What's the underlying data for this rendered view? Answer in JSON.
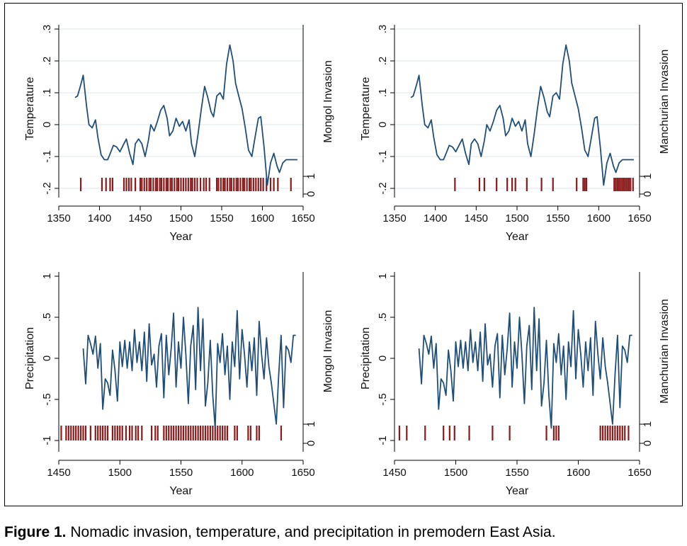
{
  "caption": {
    "label": "Figure 1.",
    "text": "Nomadic invasion, temperature, and precipitation in premodern East Asia."
  },
  "colors": {
    "series_line": "#1f4e79",
    "invasion_bars": "#8b1a1a",
    "grid": "#d8e6ee",
    "axis": "#000000"
  },
  "chart_data": [
    {
      "type": "line",
      "panel": "top-left",
      "xlabel": "Year",
      "ylabel": "Temperature",
      "y2label": "Mongol Invasion",
      "xlim": [
        1350,
        1650
      ],
      "ylim": [
        -0.2,
        0.3
      ],
      "xticks": [
        1350,
        1400,
        1450,
        1500,
        1550,
        1600,
        1650
      ],
      "yticks": [
        -0.2,
        -0.1,
        0,
        0.1,
        0.2,
        0.3
      ],
      "ytick_labels": [
        "-.2",
        "-.1",
        "0",
        ".1",
        ".2",
        ".3"
      ],
      "y2ticks": [
        "0",
        "1"
      ],
      "grid": true,
      "series": [
        {
          "x": [
            1370,
            1373,
            1377,
            1380,
            1384,
            1387,
            1391,
            1395,
            1398,
            1402,
            1406,
            1410,
            1414,
            1417,
            1421,
            1425,
            1429,
            1433,
            1437,
            1441,
            1444,
            1448,
            1452,
            1456,
            1460,
            1463,
            1467,
            1471,
            1475,
            1479,
            1483,
            1486,
            1490,
            1494,
            1498,
            1502,
            1506,
            1510,
            1513,
            1517,
            1521,
            1525,
            1529,
            1533,
            1537,
            1540,
            1544,
            1548,
            1552,
            1556,
            1560,
            1564,
            1567,
            1571,
            1575,
            1579,
            1583,
            1587,
            1591,
            1595,
            1598,
            1602,
            1606,
            1610,
            1614,
            1618,
            1621,
            1625,
            1629,
            1633,
            1637,
            1640,
            1643
          ],
          "y": [
            0.085,
            0.09,
            0.125,
            0.155,
            0.06,
            0.0,
            -0.01,
            0.015,
            -0.04,
            -0.095,
            -0.11,
            -0.11,
            -0.085,
            -0.065,
            -0.07,
            -0.085,
            -0.065,
            -0.045,
            -0.09,
            -0.125,
            -0.06,
            -0.045,
            -0.06,
            -0.1,
            -0.05,
            0.0,
            -0.02,
            0.01,
            0.045,
            0.06,
            0.02,
            -0.035,
            -0.02,
            0.02,
            -0.005,
            0.01,
            -0.02,
            0.015,
            -0.06,
            -0.1,
            -0.03,
            0.05,
            0.12,
            0.085,
            0.04,
            0.025,
            0.09,
            0.1,
            0.08,
            0.19,
            0.25,
            0.2,
            0.13,
            0.09,
            0.05,
            -0.01,
            -0.08,
            -0.1,
            -0.04,
            0.02,
            0.025,
            -0.07,
            -0.19,
            -0.12,
            -0.09,
            -0.13,
            -0.15,
            -0.12,
            -0.11,
            -0.11,
            -0.11,
            -0.11,
            -0.11
          ]
        }
      ],
      "invasion_years": [
        1377,
        1403,
        1408,
        1413,
        1416,
        1430,
        1433,
        1436,
        1439,
        1444,
        1450,
        1452,
        1455,
        1458,
        1461,
        1463,
        1466,
        1469,
        1471,
        1474,
        1476,
        1479,
        1482,
        1484,
        1487,
        1489,
        1492,
        1495,
        1497,
        1500,
        1503,
        1506,
        1509,
        1512,
        1514,
        1517,
        1520,
        1524,
        1528,
        1531,
        1535,
        1544,
        1546,
        1549,
        1552,
        1554,
        1557,
        1560,
        1562,
        1565,
        1568,
        1570,
        1573,
        1576,
        1578,
        1581,
        1584,
        1586,
        1589,
        1592,
        1595,
        1598,
        1601,
        1605,
        1610,
        1614,
        1619,
        1635
      ]
    },
    {
      "type": "line",
      "panel": "top-right",
      "xlabel": "Year",
      "ylabel": "Temperature",
      "y2label": "Manchurian Invasion",
      "xlim": [
        1350,
        1650
      ],
      "ylim": [
        -0.2,
        0.3
      ],
      "xticks": [
        1350,
        1400,
        1450,
        1500,
        1550,
        1600,
        1650
      ],
      "yticks": [
        -0.2,
        -0.1,
        0,
        0.1,
        0.2,
        0.3
      ],
      "ytick_labels": [
        "-.2",
        "-.1",
        "0",
        ".1",
        ".2",
        ".3"
      ],
      "y2ticks": [
        "0",
        "1"
      ],
      "grid": true,
      "series": [
        {
          "x": [
            1370,
            1373,
            1377,
            1380,
            1384,
            1387,
            1391,
            1395,
            1398,
            1402,
            1406,
            1410,
            1414,
            1417,
            1421,
            1425,
            1429,
            1433,
            1437,
            1441,
            1444,
            1448,
            1452,
            1456,
            1460,
            1463,
            1467,
            1471,
            1475,
            1479,
            1483,
            1486,
            1490,
            1494,
            1498,
            1502,
            1506,
            1510,
            1513,
            1517,
            1521,
            1525,
            1529,
            1533,
            1537,
            1540,
            1544,
            1548,
            1552,
            1556,
            1560,
            1564,
            1567,
            1571,
            1575,
            1579,
            1583,
            1587,
            1591,
            1595,
            1598,
            1602,
            1606,
            1610,
            1614,
            1618,
            1621,
            1625,
            1629,
            1633,
            1637,
            1640,
            1643
          ],
          "y": [
            0.085,
            0.09,
            0.125,
            0.155,
            0.06,
            0.0,
            -0.01,
            0.015,
            -0.04,
            -0.095,
            -0.11,
            -0.11,
            -0.085,
            -0.065,
            -0.07,
            -0.085,
            -0.065,
            -0.045,
            -0.09,
            -0.125,
            -0.06,
            -0.045,
            -0.06,
            -0.1,
            -0.05,
            0.0,
            -0.02,
            0.01,
            0.045,
            0.06,
            0.02,
            -0.035,
            -0.02,
            0.02,
            -0.005,
            0.01,
            -0.02,
            0.015,
            -0.06,
            -0.1,
            -0.03,
            0.05,
            0.12,
            0.085,
            0.04,
            0.025,
            0.09,
            0.1,
            0.08,
            0.19,
            0.25,
            0.2,
            0.13,
            0.09,
            0.05,
            -0.01,
            -0.08,
            -0.1,
            -0.04,
            0.02,
            0.025,
            -0.07,
            -0.19,
            -0.12,
            -0.09,
            -0.13,
            -0.15,
            -0.12,
            -0.11,
            -0.11,
            -0.11,
            -0.11,
            -0.11
          ]
        }
      ],
      "invasion_years": [
        1424,
        1454,
        1460,
        1475,
        1488,
        1494,
        1498,
        1512,
        1530,
        1544,
        1573,
        1581,
        1583,
        1585,
        1619,
        1621,
        1623,
        1625,
        1627,
        1629,
        1631,
        1633,
        1635,
        1637,
        1639,
        1642
      ]
    },
    {
      "type": "line",
      "panel": "bottom-left",
      "xlabel": "Year",
      "ylabel": "Precipitation",
      "y2label": "Mongol Invasion",
      "xlim": [
        1450,
        1650
      ],
      "ylim": [
        -1,
        1
      ],
      "xticks": [
        1450,
        1500,
        1550,
        1600,
        1650
      ],
      "yticks": [
        -1,
        -0.5,
        0,
        0.5,
        1
      ],
      "ytick_labels": [
        "-1",
        "-.5",
        "0",
        ".5",
        "1"
      ],
      "y2ticks": [
        "0",
        "1"
      ],
      "grid": false,
      "series": [
        {
          "x": [
            1470,
            1472,
            1474,
            1476,
            1478,
            1480,
            1482,
            1484,
            1486,
            1488,
            1490,
            1492,
            1494,
            1496,
            1498,
            1500,
            1502,
            1504,
            1506,
            1508,
            1510,
            1512,
            1514,
            1516,
            1518,
            1520,
            1522,
            1524,
            1526,
            1528,
            1530,
            1532,
            1534,
            1536,
            1538,
            1540,
            1542,
            1544,
            1546,
            1548,
            1550,
            1552,
            1554,
            1556,
            1558,
            1560,
            1562,
            1564,
            1566,
            1568,
            1570,
            1572,
            1574,
            1576,
            1578,
            1580,
            1582,
            1584,
            1586,
            1588,
            1590,
            1592,
            1594,
            1596,
            1598,
            1600,
            1602,
            1604,
            1606,
            1608,
            1610,
            1612,
            1614,
            1616,
            1618,
            1620,
            1622,
            1624,
            1626,
            1628,
            1630,
            1632,
            1634,
            1636,
            1638,
            1640,
            1642,
            1644
          ],
          "y": [
            0.12,
            -0.31,
            0.28,
            0.18,
            0.05,
            0.27,
            -0.12,
            0.18,
            -0.62,
            -0.25,
            -0.3,
            -0.45,
            0.1,
            -0.15,
            -0.52,
            0.2,
            -0.1,
            0.22,
            -0.12,
            0.2,
            -0.15,
            0.35,
            -0.05,
            0.2,
            -0.15,
            0.32,
            -0.28,
            0.42,
            -0.08,
            0.05,
            -0.35,
            0.15,
            0.3,
            -0.48,
            0.28,
            -0.2,
            0.12,
            0.55,
            -0.35,
            0.2,
            -0.12,
            0.5,
            0.05,
            -0.55,
            0.15,
            0.4,
            -0.38,
            0.62,
            -0.15,
            0.48,
            -0.58,
            -0.3,
            0.22,
            -0.45,
            -0.85,
            0.18,
            -0.05,
            0.3,
            -0.2,
            0.15,
            -0.5,
            0.2,
            -0.1,
            0.58,
            -0.25,
            0.35,
            0.05,
            -0.35,
            0.2,
            -0.15,
            0.25,
            -0.45,
            0.45,
            0.05,
            -0.25,
            0.25,
            -0.1,
            -0.3,
            -0.55,
            -0.8,
            -0.2,
            0.28,
            -0.6,
            0.15,
            0.1,
            -0.05,
            0.28,
            0.28
          ]
        }
      ],
      "invasion_years": [
        1452,
        1456,
        1458,
        1460,
        1462,
        1464,
        1466,
        1468,
        1470,
        1472,
        1476,
        1480,
        1482,
        1484,
        1486,
        1488,
        1490,
        1494,
        1496,
        1498,
        1500,
        1502,
        1505,
        1508,
        1510,
        1513,
        1515,
        1518,
        1526,
        1529,
        1531,
        1536,
        1538,
        1540,
        1542,
        1544,
        1546,
        1548,
        1550,
        1552,
        1554,
        1556,
        1558,
        1560,
        1562,
        1564,
        1566,
        1568,
        1570,
        1572,
        1574,
        1576,
        1578,
        1580,
        1582,
        1584,
        1586,
        1588,
        1594,
        1596,
        1605,
        1607,
        1612,
        1614,
        1632
      ]
    },
    {
      "type": "line",
      "panel": "bottom-right",
      "xlabel": "Year",
      "ylabel": "Precipitation",
      "y2label": "Manchurian Invasion",
      "xlim": [
        1450,
        1650
      ],
      "ylim": [
        -1,
        1
      ],
      "xticks": [
        1450,
        1500,
        1550,
        1600,
        1650
      ],
      "yticks": [
        -1,
        -0.5,
        0,
        0.5,
        1
      ],
      "ytick_labels": [
        "-1",
        "-.5",
        "0",
        ".5",
        "1"
      ],
      "y2ticks": [
        "0",
        "1"
      ],
      "grid": false,
      "series": [
        {
          "x": [
            1470,
            1472,
            1474,
            1476,
            1478,
            1480,
            1482,
            1484,
            1486,
            1488,
            1490,
            1492,
            1494,
            1496,
            1498,
            1500,
            1502,
            1504,
            1506,
            1508,
            1510,
            1512,
            1514,
            1516,
            1518,
            1520,
            1522,
            1524,
            1526,
            1528,
            1530,
            1532,
            1534,
            1536,
            1538,
            1540,
            1542,
            1544,
            1546,
            1548,
            1550,
            1552,
            1554,
            1556,
            1558,
            1560,
            1562,
            1564,
            1566,
            1568,
            1570,
            1572,
            1574,
            1576,
            1578,
            1580,
            1582,
            1584,
            1586,
            1588,
            1590,
            1592,
            1594,
            1596,
            1598,
            1600,
            1602,
            1604,
            1606,
            1608,
            1610,
            1612,
            1614,
            1616,
            1618,
            1620,
            1622,
            1624,
            1626,
            1628,
            1630,
            1632,
            1634,
            1636,
            1638,
            1640,
            1642,
            1644
          ],
          "y": [
            0.12,
            -0.31,
            0.28,
            0.18,
            0.05,
            0.27,
            -0.12,
            0.18,
            -0.62,
            -0.25,
            -0.3,
            -0.45,
            0.1,
            -0.15,
            -0.52,
            0.2,
            -0.1,
            0.22,
            -0.12,
            0.2,
            -0.15,
            0.35,
            -0.05,
            0.2,
            -0.15,
            0.32,
            -0.28,
            0.42,
            -0.08,
            0.05,
            -0.35,
            0.15,
            0.3,
            -0.48,
            0.28,
            -0.2,
            0.12,
            0.55,
            -0.35,
            0.2,
            -0.12,
            0.5,
            0.05,
            -0.55,
            0.15,
            0.4,
            -0.38,
            0.62,
            -0.15,
            0.48,
            -0.58,
            -0.3,
            0.22,
            -0.45,
            -0.85,
            0.18,
            -0.05,
            0.3,
            -0.2,
            0.15,
            -0.5,
            0.2,
            -0.1,
            0.58,
            -0.25,
            0.35,
            0.05,
            -0.35,
            0.2,
            -0.15,
            0.25,
            -0.45,
            0.45,
            0.05,
            -0.25,
            0.25,
            -0.1,
            -0.3,
            -0.55,
            -0.8,
            -0.2,
            0.28,
            -0.6,
            0.15,
            0.1,
            -0.05,
            0.28,
            0.28
          ]
        }
      ],
      "invasion_years": [
        1454,
        1460,
        1475,
        1490,
        1495,
        1499,
        1511,
        1530,
        1544,
        1574,
        1580,
        1582,
        1584,
        1618,
        1620,
        1622,
        1624,
        1626,
        1628,
        1630,
        1632,
        1634,
        1636,
        1638,
        1641
      ]
    }
  ]
}
